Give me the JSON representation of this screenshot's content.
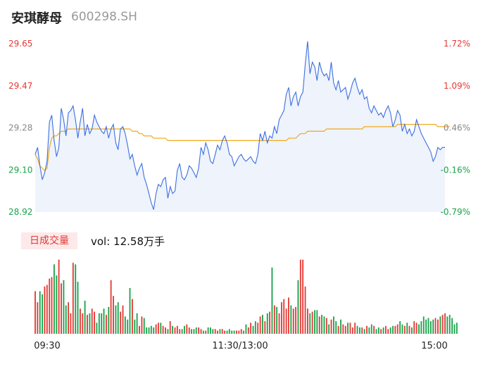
{
  "header": {
    "stock_name": "安琪酵母",
    "stock_code": "600298.SH"
  },
  "volume_panel": {
    "tab_label": "日成交量",
    "vol_text": "vol: 12.58万手"
  },
  "colors": {
    "up": "#e53935",
    "down": "#1aa34a",
    "price_line": "#3d6fe0",
    "avg_line": "#f0a91b",
    "area_fill": "#eef3fc"
  },
  "chart_data": [
    {
      "type": "line",
      "title": "",
      "ylim": [
        28.92,
        29.65
      ],
      "y_ticks": [
        "29.65",
        "29.47",
        "29.28",
        "29.10",
        "28.92"
      ],
      "y2_ticks": [
        "1.72%",
        "1.09%",
        "0.46%",
        "-0.16%",
        "-0.79%"
      ],
      "x_ticks": [
        "09:30",
        "11:30/13:00",
        "15:00"
      ],
      "series": [
        {
          "role": "price",
          "values": [
            29.17,
            29.2,
            29.12,
            29.06,
            29.09,
            29.14,
            29.31,
            29.34,
            29.23,
            29.16,
            29.2,
            29.37,
            29.32,
            29.25,
            29.35,
            29.36,
            29.38,
            29.32,
            29.24,
            29.31,
            29.37,
            29.25,
            29.3,
            29.26,
            29.28,
            29.34,
            29.31,
            29.29,
            29.27,
            29.26,
            29.29,
            29.24,
            29.28,
            29.3,
            29.22,
            29.19,
            29.28,
            29.29,
            29.26,
            29.21,
            29.15,
            29.17,
            29.12,
            29.08,
            29.11,
            29.13,
            29.07,
            29.04,
            29.0,
            28.96,
            28.93,
            29.0,
            29.04,
            29.03,
            29.06,
            29.07,
            28.98,
            29.03,
            29.0,
            29.01,
            29.1,
            29.13,
            29.07,
            29.06,
            29.08,
            29.12,
            29.11,
            29.09,
            29.07,
            29.11,
            29.2,
            29.17,
            29.22,
            29.19,
            29.14,
            29.13,
            29.17,
            29.21,
            29.19,
            29.23,
            29.25,
            29.22,
            29.17,
            29.16,
            29.12,
            29.14,
            29.16,
            29.17,
            29.15,
            29.14,
            29.15,
            29.16,
            29.14,
            29.13,
            29.17,
            29.26,
            29.23,
            29.27,
            29.22,
            29.25,
            29.24,
            29.29,
            29.26,
            29.32,
            29.34,
            29.36,
            29.43,
            29.46,
            29.38,
            29.42,
            29.44,
            29.38,
            29.42,
            29.44,
            29.56,
            29.66,
            29.52,
            29.57,
            29.55,
            29.49,
            29.57,
            29.53,
            29.51,
            29.52,
            29.49,
            29.57,
            29.48,
            29.45,
            29.49,
            29.44,
            29.45,
            29.46,
            29.41,
            29.44,
            29.48,
            29.5,
            29.46,
            29.43,
            29.45,
            29.41,
            29.42,
            29.37,
            29.35,
            29.38,
            29.36,
            29.34,
            29.35,
            29.33,
            29.36,
            29.38,
            29.35,
            29.29,
            29.32,
            29.36,
            29.34,
            29.27,
            29.3,
            29.26,
            29.28,
            29.25,
            29.27,
            29.32,
            29.29,
            29.26,
            29.24,
            29.22,
            29.2,
            29.18,
            29.14,
            29.16,
            29.2,
            29.19,
            29.2,
            29.2
          ]
        },
        {
          "role": "average",
          "values": [
            29.17,
            29.15,
            29.12,
            29.11,
            29.1,
            29.11,
            29.2,
            29.24,
            29.25,
            29.25,
            29.26,
            29.27,
            29.27,
            29.27,
            29.28,
            29.28,
            29.28,
            29.28,
            29.28,
            29.28,
            29.28,
            29.28,
            29.28,
            29.28,
            29.28,
            29.28,
            29.28,
            29.28,
            29.28,
            29.28,
            29.28,
            29.28,
            29.28,
            29.28,
            29.28,
            29.28,
            29.28,
            29.28,
            29.28,
            29.28,
            29.28,
            29.27,
            29.27,
            29.27,
            29.26,
            29.26,
            29.25,
            29.25,
            29.25,
            29.25,
            29.24,
            29.24,
            29.24,
            29.24,
            29.24,
            29.24,
            29.23,
            29.23,
            29.23,
            29.23,
            29.23,
            29.23,
            29.23,
            29.23,
            29.23,
            29.23,
            29.23,
            29.23,
            29.23,
            29.23,
            29.23,
            29.23,
            29.23,
            29.23,
            29.23,
            29.23,
            29.23,
            29.23,
            29.23,
            29.23,
            29.23,
            29.23,
            29.23,
            29.23,
            29.23,
            29.23,
            29.23,
            29.23,
            29.23,
            29.23,
            29.23,
            29.23,
            29.23,
            29.23,
            29.23,
            29.23,
            29.23,
            29.23,
            29.23,
            29.23,
            29.23,
            29.23,
            29.23,
            29.23,
            29.23,
            29.23,
            29.23,
            29.24,
            29.24,
            29.24,
            29.24,
            29.25,
            29.26,
            29.26,
            29.26,
            29.27,
            29.27,
            29.27,
            29.27,
            29.27,
            29.27,
            29.27,
            29.27,
            29.28,
            29.28,
            29.28,
            29.28,
            29.28,
            29.28,
            29.28,
            29.28,
            29.28,
            29.28,
            29.28,
            29.28,
            29.28,
            29.28,
            29.28,
            29.28,
            29.29,
            29.29,
            29.29,
            29.29,
            29.29,
            29.29,
            29.29,
            29.29,
            29.29,
            29.29,
            29.29,
            29.29,
            29.29,
            29.29,
            29.3,
            29.3,
            29.3,
            29.3,
            29.3,
            29.3,
            29.3,
            29.3,
            29.3,
            29.3,
            29.3,
            29.3,
            29.3,
            29.3,
            29.3,
            29.3,
            29.3,
            29.29,
            29.29,
            29.29,
            29.29,
            29.29,
            29.29
          ]
        }
      ]
    },
    {
      "type": "bar",
      "title": "",
      "ylabel": "vol",
      "series": [
        {
          "role": "volume",
          "values": [
            0.27,
            0.2,
            0.27,
            0.25,
            0.3,
            0.31,
            0.35,
            0.36,
            0.44,
            0.37,
            0.47,
            0.32,
            0.34,
            0.18,
            0.2,
            0.13,
            0.45,
            0.44,
            0.33,
            0.16,
            0.13,
            0.21,
            0.12,
            0.13,
            0.16,
            0.14,
            0.07,
            0.13,
            0.13,
            0.16,
            0.12,
            0.17,
            0.34,
            0.24,
            0.18,
            0.2,
            0.14,
            0.18,
            0.11,
            0.09,
            0.29,
            0.22,
            0.09,
            0.13,
            0.05,
            0.11,
            0.1,
            0.04,
            0.04,
            0.05,
            0.04,
            0.06,
            0.07,
            0.07,
            0.05,
            0.04,
            0.03,
            0.08,
            0.05,
            0.04,
            0.05,
            0.03,
            0.03,
            0.05,
            0.06,
            0.04,
            0.03,
            0.03,
            0.04,
            0.04,
            0.03,
            0.02,
            0.02,
            0.04,
            0.04,
            0.03,
            0.03,
            0.02,
            0.03,
            0.03,
            0.02,
            0.02,
            0.03,
            0.02,
            0.02,
            0.02,
            0.02,
            0.03,
            0.02,
            0.06,
            0.04,
            0.07,
            0.05,
            0.08,
            0.07,
            0.11,
            0.12,
            0.08,
            0.13,
            0.14,
            0.42,
            0.18,
            0.17,
            0.13,
            0.2,
            0.22,
            0.16,
            0.23,
            0.18,
            0.16,
            0.17,
            0.34,
            0.47,
            0.47,
            0.3,
            0.16,
            0.13,
            0.14,
            0.15,
            0.15,
            0.11,
            0.12,
            0.11,
            0.1,
            0.06,
            0.09,
            0.11,
            0.08,
            0.05,
            0.09,
            0.06,
            0.05,
            0.07,
            0.07,
            0.04,
            0.07,
            0.05,
            0.04,
            0.04,
            0.03,
            0.05,
            0.04,
            0.06,
            0.05,
            0.03,
            0.04,
            0.03,
            0.04,
            0.05,
            0.03,
            0.04,
            0.05,
            0.05,
            0.06,
            0.08,
            0.06,
            0.05,
            0.07,
            0.05,
            0.04,
            0.08,
            0.07,
            0.06,
            0.08,
            0.11,
            0.09,
            0.1,
            0.08,
            0.09,
            0.1,
            0.09,
            0.11,
            0.12,
            0.13,
            0.11,
            0.12,
            0.1,
            0.06,
            0.07
          ]
        }
      ]
    }
  ]
}
